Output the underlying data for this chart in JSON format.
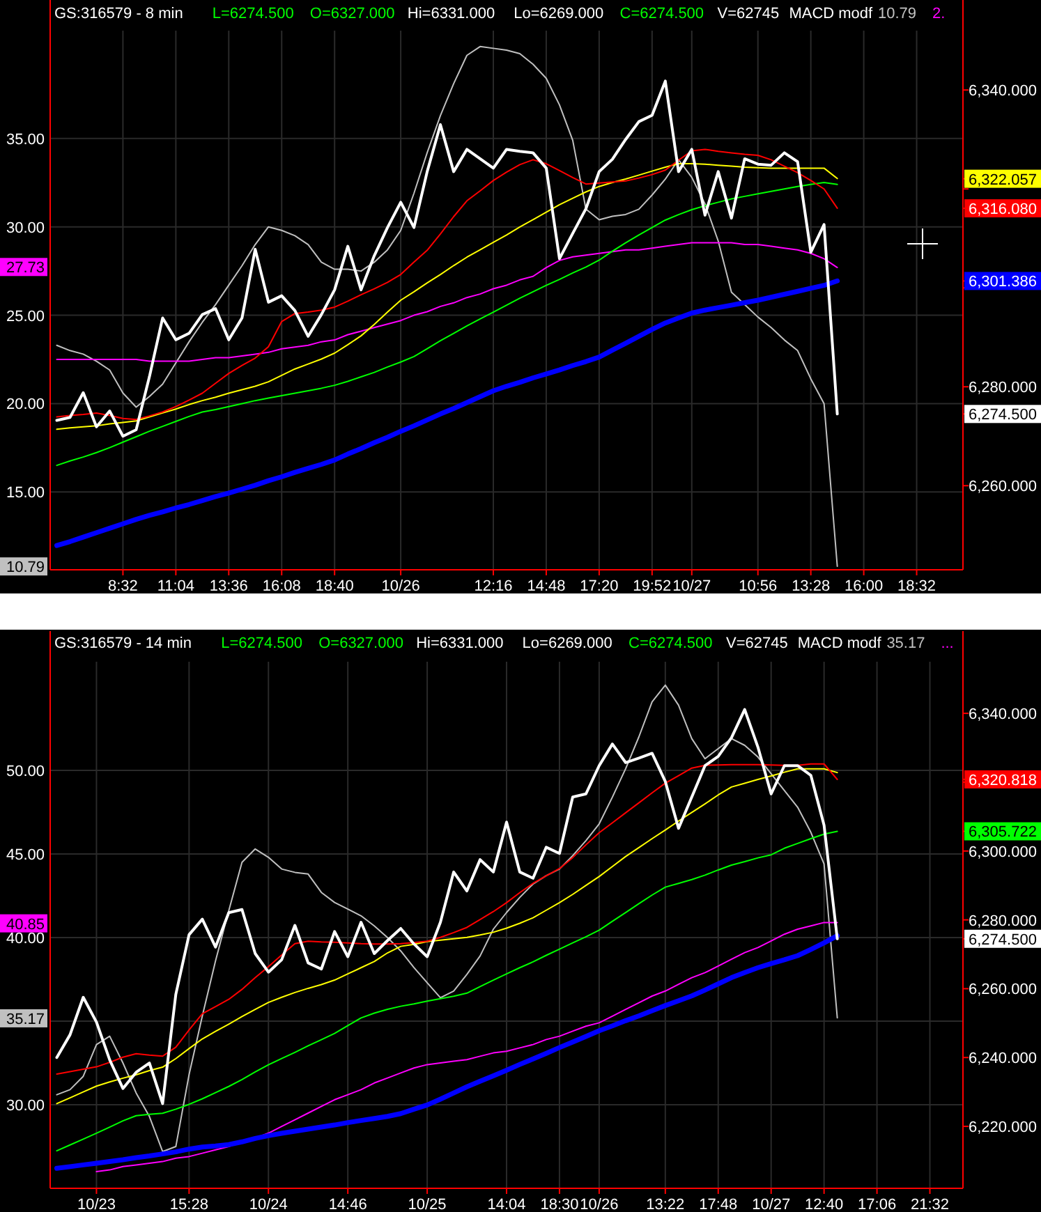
{
  "chart_data": [
    {
      "type": "line",
      "title": "GS:316579 - 8 min",
      "annotations": [
        "L=6274.500",
        "O=6327.000",
        "Hi=6331.000",
        "Lo=6269.000",
        "C=6274.500",
        "V=62745",
        "MACD modf",
        "10.79",
        "2.",
        {
          "text": "10.79",
          "y": 10.79
        },
        {
          "text": "27.73",
          "y": 27.73
        }
      ],
      "categories": [
        null,
        null,
        null,
        null,
        null,
        "8:32",
        null,
        null,
        null,
        "11:04",
        null,
        null,
        null,
        "13:36",
        null,
        null,
        null,
        "16:08",
        null,
        null,
        null,
        "18:40",
        null,
        null,
        null,
        null,
        "10/26",
        null,
        null,
        null,
        null,
        null,
        null,
        "12:16",
        null,
        null,
        null,
        "14:48",
        null,
        null,
        null,
        "17:20",
        null,
        null,
        null,
        "19:52",
        null,
        null,
        "10/27",
        null,
        null,
        null,
        null,
        "10:56",
        null,
        null,
        null,
        "13:28",
        null,
        null,
        null,
        "16:00",
        null,
        null,
        null,
        "18:32",
        null,
        null,
        null
      ],
      "ylim": [
        10.6,
        41.1
      ],
      "yticks": [
        {
          "value": 15,
          "label": "15.00"
        },
        {
          "value": 20,
          "label": "20.00"
        },
        {
          "value": 25,
          "label": "25.00"
        },
        {
          "value": 30,
          "label": "30.00"
        },
        {
          "value": 35,
          "label": "35.00"
        }
      ],
      "y2lim": [
        6243,
        6352
      ],
      "y2ticks": [
        {
          "value": 6260,
          "label": "6,260.000"
        },
        {
          "value": 6274.5,
          "label": "6,274.500"
        },
        {
          "value": 6280,
          "label": "6,280.000"
        },
        {
          "value": 6300,
          "label": null
        },
        {
          "value": 6301.386,
          "label": "6,301.386"
        },
        {
          "value": 6316.08,
          "label": "6,316.080"
        },
        {
          "value": 6320,
          "label": null
        },
        {
          "value": 6322.057,
          "label": "6,322.057"
        },
        {
          "value": 6340,
          "label": "6,340.000"
        }
      ],
      "grid": true,
      "series": [
        {
          "color": "#c0c0c0",
          "axis": "y",
          "values": [
            23.3,
            23.0,
            22.8,
            22.4,
            21.9,
            20.6,
            19.8,
            20.4,
            21.1,
            22.3,
            23.5,
            24.6,
            25.6,
            26.7,
            27.8,
            29.0,
            30.0,
            29.8,
            29.5,
            29.0,
            28.0,
            27.6,
            27.6,
            27.5,
            28.0,
            28.7,
            29.8,
            31.9,
            34.2,
            36.3,
            38.1,
            39.7,
            40.2,
            40.1,
            40.0,
            39.8,
            39.2,
            38.4,
            36.9,
            34.9,
            31.0,
            30.4,
            30.6,
            30.7,
            31.0,
            31.8,
            32.7,
            33.8,
            32.8,
            31.3,
            29.2,
            26.3,
            25.6,
            24.9,
            24.3,
            23.6,
            23.0,
            21.4,
            20.0,
            10.8,
            null,
            null,
            null,
            null,
            null,
            null,
            null,
            null,
            null
          ]
        },
        {
          "color": "#ff00ff",
          "axis": "y",
          "values": [
            22.5,
            22.5,
            22.5,
            22.5,
            22.5,
            22.5,
            22.5,
            22.4,
            22.4,
            22.4,
            22.4,
            22.5,
            22.6,
            22.6,
            22.7,
            22.8,
            22.9,
            23.1,
            23.2,
            23.3,
            23.5,
            23.6,
            23.9,
            24.1,
            24.3,
            24.5,
            24.7,
            25.0,
            25.2,
            25.5,
            25.7,
            26.0,
            26.2,
            26.5,
            26.7,
            27.0,
            27.2,
            27.7,
            28.1,
            28.3,
            28.4,
            28.5,
            28.6,
            28.7,
            28.7,
            28.8,
            28.9,
            29.0,
            29.1,
            29.1,
            29.1,
            29.1,
            29.0,
            29.0,
            28.9,
            28.8,
            28.7,
            28.5,
            28.2,
            27.7,
            null,
            null,
            null,
            null,
            null,
            null,
            null,
            null,
            null
          ]
        },
        {
          "color": "#0000ff",
          "axis": "y2",
          "values": [
            6247.9,
            6248.7,
            6249.6,
            6250.5,
            6251.4,
            6252.3,
            6253.2,
            6254.0,
            6254.7,
            6255.5,
            6256.2,
            6257.0,
            6257.8,
            6258.5,
            6259.3,
            6260.1,
            6261.0,
            6261.8,
            6262.7,
            6263.5,
            6264.3,
            6265.2,
            6266.4,
            6267.5,
            6268.7,
            6269.8,
            6271.0,
            6272.1,
            6273.3,
            6274.5,
            6275.6,
            6276.8,
            6278.0,
            6279.2,
            6280.1,
            6280.9,
            6281.8,
            6282.6,
            6283.4,
            6284.3,
            6285.1,
            6286.0,
            6287.4,
            6288.8,
            6290.2,
            6291.6,
            6292.9,
            6293.9,
            6294.9,
            6295.5,
            6296.0,
            6296.5,
            6297.0,
            6297.5,
            6298.1,
            6298.7,
            6299.3,
            6299.9,
            6300.5,
            6301.4,
            null,
            null,
            null,
            null,
            null,
            null,
            null,
            null,
            null
          ]
        },
        {
          "color": "#00ff00",
          "axis": "y2",
          "values": [
            6264.1,
            6265.0,
            6265.8,
            6266.7,
            6267.7,
            6268.8,
            6269.9,
            6271.0,
            6272.0,
            6273.0,
            6274.0,
            6274.9,
            6275.4,
            6276.0,
            6276.6,
            6277.2,
            6277.7,
            6278.2,
            6278.7,
            6279.2,
            6279.7,
            6280.3,
            6281.1,
            6282.0,
            6282.9,
            6284.0,
            6285.0,
            6286.1,
            6287.7,
            6289.3,
            6290.8,
            6292.3,
            6293.7,
            6295.1,
            6296.5,
            6297.9,
            6299.2,
            6300.5,
            6301.7,
            6303.0,
            6304.2,
            6305.6,
            6307.4,
            6309.1,
            6310.7,
            6312.2,
            6313.7,
            6314.8,
            6315.8,
            6316.6,
            6317.3,
            6318.0,
            6318.5,
            6319.0,
            6319.5,
            6320.0,
            6320.5,
            6320.9,
            6321.3,
            6320.9,
            null,
            null,
            null,
            null,
            null,
            null,
            null,
            null,
            null
          ]
        },
        {
          "color": "#ffff00",
          "axis": "y2",
          "values": [
            6271.4,
            6271.7,
            6271.9,
            6272.1,
            6272.5,
            6272.8,
            6273.1,
            6273.9,
            6274.7,
            6275.5,
            6276.4,
            6277.2,
            6277.9,
            6278.7,
            6279.4,
            6280.1,
            6281.0,
            6282.3,
            6283.6,
            6284.6,
            6285.6,
            6286.8,
            6288.5,
            6290.3,
            6292.6,
            6295.1,
            6297.5,
            6299.2,
            6301.0,
            6302.7,
            6304.5,
            6306.2,
            6307.7,
            6309.2,
            6310.7,
            6312.3,
            6313.8,
            6315.3,
            6316.8,
            6318.1,
            6319.4,
            6320.5,
            6321.3,
            6322.0,
            6322.8,
            6323.6,
            6324.4,
            6325.1,
            6325.1,
            6325.0,
            6324.8,
            6324.6,
            6324.4,
            6324.3,
            6324.2,
            6324.2,
            6324.2,
            6324.2,
            6324.2,
            6322.1,
            null,
            null,
            null,
            null,
            null,
            null,
            null,
            null,
            null
          ]
        },
        {
          "color": "#ff0000",
          "axis": "y2",
          "values": [
            6273.9,
            6274.2,
            6274.4,
            6274.7,
            6274.2,
            6273.6,
            6273.4,
            6274.1,
            6274.9,
            6276.0,
            6277.3,
            6278.7,
            6280.7,
            6282.7,
            6284.3,
            6285.8,
            6288.1,
            6293.2,
            6294.8,
            6295.1,
            6295.5,
            6296.1,
            6297.3,
            6298.6,
            6299.8,
            6301.1,
            6302.7,
            6305.2,
            6307.6,
            6310.9,
            6314.4,
            6317.6,
            6319.6,
            6321.7,
            6323.4,
            6324.9,
            6325.9,
            6325.1,
            6323.7,
            6322.3,
            6321.0,
            6321.2,
            6321.4,
            6321.6,
            6322.2,
            6322.9,
            6323.8,
            6325.8,
            6327.7,
            6328.0,
            6327.6,
            6327.3,
            6327.0,
            6326.8,
            6325.9,
            6324.6,
            6323.3,
            6321.7,
            6320.0,
            6316.1,
            null,
            null,
            null,
            null,
            null,
            null,
            null,
            null,
            null
          ]
        },
        {
          "color": "#ffffff",
          "axis": "y2",
          "values": [
            6273.2,
            6273.8,
            6278.8,
            6271.9,
            6275.1,
            6270.0,
            6271.3,
            6282.0,
            6293.9,
            6289.5,
            6290.8,
            6294.6,
            6295.8,
            6289.5,
            6293.9,
            6307.8,
            6297.1,
            6298.4,
            6295.4,
            6290.2,
            6294.6,
            6299.6,
            6308.4,
            6299.6,
            6306.5,
            6312.2,
            6317.3,
            6312.2,
            6323.5,
            6333.0,
            6323.5,
            6328.0,
            6326.1,
            6324.2,
            6328.0,
            6327.6,
            6327.3,
            6324.2,
            6305.9,
            6311.0,
            6316.0,
            6323.5,
            6326.0,
            6330.0,
            6333.6,
            6334.9,
            6341.8,
            6323.5,
            6328.0,
            6314.7,
            6323.5,
            6314.1,
            6326.1,
            6325.0,
            6324.8,
            6327.3,
            6325.5,
            6307.2,
            6312.8,
            6274.5,
            null,
            null,
            null,
            null,
            null,
            null,
            null,
            null,
            null
          ]
        }
      ]
    },
    {
      "type": "line",
      "title": "GS:316579 - 14 min",
      "annotations": [
        "L=6274.500",
        "O=6327.000",
        "Hi=6331.000",
        "Lo=6269.000",
        "C=6274.500",
        "V=62745",
        "MACD modf",
        "35.17",
        "...",
        {
          "text": "35.17",
          "y": 35.17
        },
        {
          "text": "40.85",
          "y": 40.85
        }
      ],
      "categories": [
        null,
        null,
        null,
        "10/23",
        null,
        null,
        null,
        null,
        null,
        null,
        "15:28",
        null,
        null,
        null,
        null,
        null,
        "10/24",
        null,
        null,
        null,
        null,
        null,
        "14:46",
        null,
        null,
        null,
        null,
        null,
        "10/25",
        null,
        null,
        null,
        null,
        null,
        "14:04",
        null,
        null,
        null,
        "18:30",
        null,
        null,
        "10/26",
        null,
        null,
        null,
        null,
        "13:22",
        null,
        null,
        null,
        "17:48",
        null,
        null,
        null,
        "10/27",
        null,
        null,
        null,
        "12:40",
        null,
        null,
        null,
        "17:06",
        null,
        null,
        null,
        "21:32",
        null,
        null
      ],
      "ylim": [
        25,
        56.5
      ],
      "yticks": [
        {
          "value": 30,
          "label": "30.00"
        },
        {
          "value": 35,
          "label": null
        },
        {
          "value": 40,
          "label": "40.00"
        },
        {
          "value": 45,
          "label": "45.00"
        },
        {
          "value": 50,
          "label": "50.00"
        }
      ],
      "y2lim": [
        6202,
        6355
      ],
      "y2ticks": [
        {
          "value": 6220,
          "label": "6,220.000"
        },
        {
          "value": 6240,
          "label": "6,240.000"
        },
        {
          "value": 6260,
          "label": "6,260.000"
        },
        {
          "value": 6274.5,
          "label": "6,274.500"
        },
        {
          "value": 6280,
          "label": "6,280.000"
        },
        {
          "value": 6300,
          "label": "6,300.000"
        },
        {
          "value": 6305.722,
          "label": "6,305.722"
        },
        {
          "value": 6320,
          "label": null
        },
        {
          "value": 6320.818,
          "label": "6,320.818"
        },
        {
          "value": 6340,
          "label": "6,340.000"
        }
      ],
      "grid": true,
      "series": [
        {
          "color": "#c0c0c0",
          "axis": "y",
          "values": [
            30.6,
            30.9,
            31.7,
            33.6,
            34.1,
            32.5,
            30.7,
            29.3,
            27.2,
            27.5,
            31.8,
            35.3,
            38.6,
            41.6,
            44.5,
            45.3,
            44.8,
            44.1,
            43.9,
            43.8,
            42.7,
            42.1,
            41.7,
            41.3,
            40.7,
            40.0,
            39.2,
            38.2,
            37.3,
            36.4,
            36.8,
            37.8,
            38.9,
            40.5,
            41.5,
            42.4,
            43.2,
            43.7,
            44.1,
            44.9,
            45.8,
            46.8,
            48.4,
            50.1,
            52.0,
            54.1,
            55.1,
            53.9,
            51.9,
            50.7,
            51.3,
            51.9,
            51.5,
            50.8,
            49.8,
            48.8,
            47.8,
            46.3,
            44.4,
            35.2,
            null,
            null,
            null,
            null,
            null,
            null,
            null,
            null,
            null
          ]
        },
        {
          "color": "#ff00ff",
          "axis": "y",
          "values": [
            null,
            null,
            null,
            26.0,
            26.1,
            26.3,
            26.4,
            26.5,
            26.6,
            26.8,
            26.9,
            27.1,
            27.3,
            27.5,
            27.8,
            28.0,
            28.3,
            28.7,
            29.1,
            29.5,
            29.9,
            30.3,
            30.6,
            30.9,
            31.3,
            31.6,
            31.9,
            32.2,
            32.4,
            32.5,
            32.6,
            32.7,
            32.9,
            33.1,
            33.2,
            33.4,
            33.6,
            33.9,
            34.1,
            34.4,
            34.7,
            34.9,
            35.3,
            35.7,
            36.1,
            36.5,
            36.8,
            37.2,
            37.6,
            37.9,
            38.3,
            38.7,
            39.1,
            39.4,
            39.8,
            40.2,
            40.5,
            40.7,
            40.9,
            40.9,
            null,
            null,
            null,
            null,
            null,
            null,
            null,
            null,
            null
          ]
        },
        {
          "color": "#0000ff",
          "axis": "y2",
          "values": [
            6207.8,
            6208.3,
            6208.8,
            6209.3,
            6209.8,
            6210.3,
            6210.9,
            6211.4,
            6212.0,
            6212.6,
            6213.4,
            6214.0,
            6214.3,
            6214.7,
            6215.5,
            6216.5,
            6217.3,
            6218.0,
            6218.6,
            6219.2,
            6219.8,
            6220.4,
            6221.1,
            6221.7,
            6222.3,
            6222.9,
            6223.7,
            6225.0,
            6226.2,
            6227.9,
            6229.7,
            6231.5,
            6233.1,
            6234.7,
            6236.3,
            6238.0,
            6239.6,
            6241.2,
            6242.9,
            6244.5,
            6246.1,
            6247.8,
            6249.2,
            6250.7,
            6252.1,
            6253.6,
            6255.1,
            6256.5,
            6257.9,
            6259.6,
            6261.4,
            6263.2,
            6264.7,
            6266.1,
            6267.3,
            6268.4,
            6269.6,
            6271.4,
            6273.3,
            6275.4,
            null,
            null,
            null,
            null,
            null,
            null,
            null,
            null,
            null
          ]
        },
        {
          "color": "#00ff00",
          "axis": "y2",
          "values": [
            6212.9,
            6214.6,
            6216.3,
            6218.0,
            6219.8,
            6221.6,
            6223.1,
            6223.5,
            6223.8,
            6225.0,
            6226.4,
            6228.0,
            6229.8,
            6231.6,
            6233.6,
            6235.8,
            6237.9,
            6239.7,
            6241.5,
            6243.4,
            6245.2,
            6247.0,
            6249.3,
            6251.5,
            6252.9,
            6254.0,
            6254.9,
            6255.6,
            6256.4,
            6257.1,
            6257.8,
            6258.7,
            6260.6,
            6262.5,
            6264.3,
            6266.1,
            6267.8,
            6269.7,
            6271.5,
            6273.3,
            6275.1,
            6277.0,
            6279.6,
            6282.1,
            6284.7,
            6287.2,
            6289.5,
            6290.6,
            6291.7,
            6293.0,
            6294.5,
            6295.9,
            6296.9,
            6298.0,
            6298.9,
            6300.8,
            6302.2,
            6303.6,
            6304.9,
            6305.7,
            null,
            null,
            null,
            null,
            null,
            null,
            null,
            null,
            null
          ]
        },
        {
          "color": "#ffff00",
          "axis": "y2",
          "values": [
            6226.6,
            6228.3,
            6230.0,
            6231.7,
            6232.9,
            6234.0,
            6235.0,
            6236.2,
            6237.2,
            6239.7,
            6242.6,
            6245.4,
            6247.6,
            6249.7,
            6251.9,
            6254.0,
            6256.0,
            6257.5,
            6258.9,
            6260.1,
            6261.2,
            6262.5,
            6264.3,
            6266.1,
            6267.9,
            6270.4,
            6272.3,
            6272.9,
            6273.7,
            6274.1,
            6274.5,
            6274.9,
            6275.6,
            6276.4,
            6277.6,
            6279.0,
            6280.6,
            6282.8,
            6285.0,
            6287.4,
            6290.0,
            6292.6,
            6295.5,
            6298.4,
            6301.0,
            6303.6,
            6306.1,
            6308.7,
            6311.2,
            6313.7,
            6316.3,
            6318.6,
            6319.7,
            6320.8,
            6321.8,
            6322.9,
            6323.9,
            6323.9,
            6323.9,
            6322.8,
            null,
            null,
            null,
            null,
            null,
            null,
            null,
            null,
            null
          ]
        },
        {
          "color": "#ff0000",
          "axis": "y2",
          "values": [
            6235.2,
            6235.9,
            6236.6,
            6237.3,
            6238.6,
            6240.1,
            6241.1,
            6240.7,
            6240.4,
            6243.0,
            6248.0,
            6252.7,
            6254.8,
            6256.9,
            6259.8,
            6263.2,
            6266.4,
            6269.8,
            6273.1,
            6273.8,
            6273.6,
            6273.5,
            6273.3,
            6273.1,
            6273.0,
            6273.0,
            6273.1,
            6273.4,
            6273.8,
            6274.9,
            6276.3,
            6277.8,
            6280.1,
            6282.4,
            6285.0,
            6287.9,
            6290.6,
            6292.8,
            6294.9,
            6298.1,
            6301.8,
            6305.3,
            6308.2,
            6311.1,
            6314.0,
            6316.9,
            6319.7,
            6321.9,
            6324.1,
            6324.9,
            6325.0,
            6325.1,
            6325.1,
            6325.1,
            6325.0,
            6324.9,
            6324.9,
            6325.3,
            6325.3,
            6320.8,
            null,
            null,
            null,
            null,
            null,
            null,
            null,
            null,
            null
          ]
        },
        {
          "color": "#ffffff",
          "axis": "y2",
          "values": [
            6240.0,
            6246.6,
            6257.5,
            6250.3,
            6239.3,
            6231.0,
            6235.7,
            6238.4,
            6226.6,
            6258.4,
            6275.7,
            6280.2,
            6272.1,
            6282.1,
            6283.0,
            6270.2,
            6264.8,
            6268.4,
            6278.4,
            6267.5,
            6265.7,
            6276.6,
            6269.3,
            6279.3,
            6270.2,
            6274.0,
            6277.5,
            6273.0,
            6269.3,
            6279.3,
            6293.9,
            6288.4,
            6297.5,
            6293.9,
            6308.4,
            6293.9,
            6292.1,
            6301.1,
            6299.3,
            6315.7,
            6316.6,
            6324.8,
            6331.1,
            6325.7,
            6327.0,
            6328.4,
            6320.2,
            6306.6,
            6315.7,
            6324.8,
            6327.5,
            6332.9,
            6341.1,
            6330.2,
            6316.6,
            6324.8,
            6324.8,
            6322.0,
            6307.5,
            6274.5,
            null,
            null,
            null,
            null,
            null,
            null,
            null,
            null,
            null
          ]
        }
      ]
    }
  ]
}
